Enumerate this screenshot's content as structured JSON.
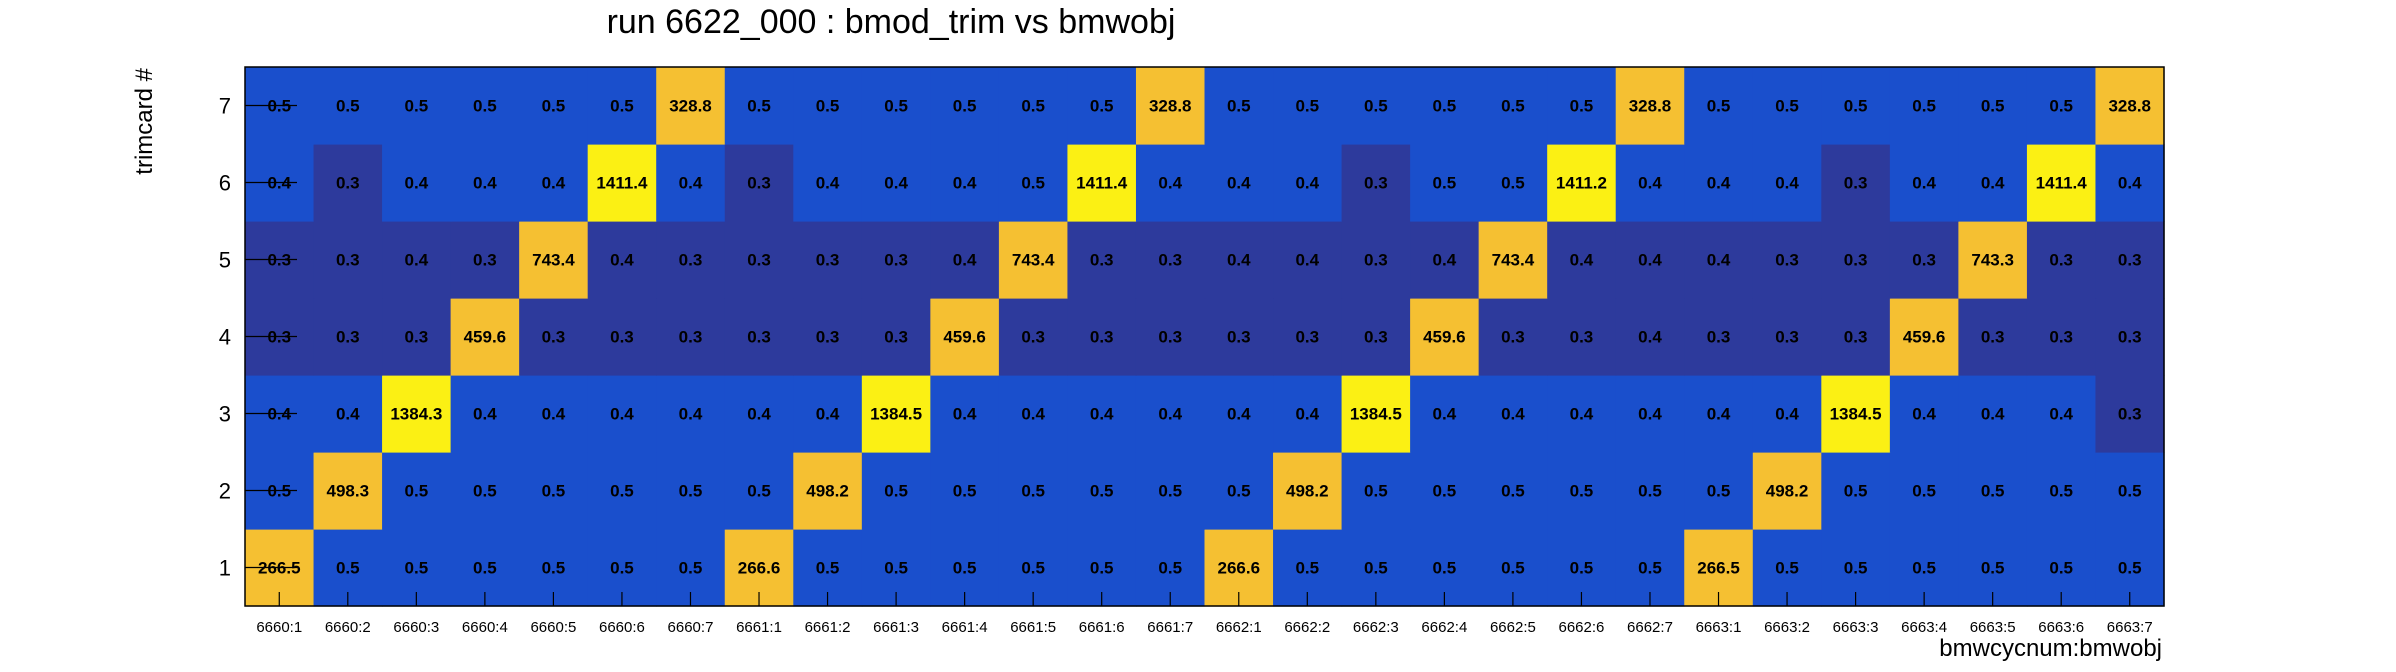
{
  "chart_data": {
    "type": "heatmap",
    "title": "run 6622_000 : bmod_trim vs bmwobj",
    "xlabel": "bmwcycnum:bmwobj",
    "ylabel": "trimcard #",
    "x_categories": [
      "6660:1",
      "6660:2",
      "6660:3",
      "6660:4",
      "6660:5",
      "6660:6",
      "6660:7",
      "6661:1",
      "6661:2",
      "6661:3",
      "6661:4",
      "6661:5",
      "6661:6",
      "6661:7",
      "6662:1",
      "6662:2",
      "6662:3",
      "6662:4",
      "6662:5",
      "6662:6",
      "6662:7",
      "6663:1",
      "6663:2",
      "6663:3",
      "6663:4",
      "6663:5",
      "6663:6",
      "6663:7"
    ],
    "y_categories": [
      "1",
      "2",
      "3",
      "4",
      "5",
      "6",
      "7"
    ],
    "values": [
      [
        "266.5",
        "0.5",
        "0.5",
        "0.5",
        "0.5",
        "0.5",
        "0.5",
        "266.6",
        "0.5",
        "0.5",
        "0.5",
        "0.5",
        "0.5",
        "0.5",
        "266.6",
        "0.5",
        "0.5",
        "0.5",
        "0.5",
        "0.5",
        "0.5",
        "266.5",
        "0.5",
        "0.5",
        "0.5",
        "0.5",
        "0.5",
        "0.5"
      ],
      [
        "0.5",
        "498.3",
        "0.5",
        "0.5",
        "0.5",
        "0.5",
        "0.5",
        "0.5",
        "498.2",
        "0.5",
        "0.5",
        "0.5",
        "0.5",
        "0.5",
        "0.5",
        "498.2",
        "0.5",
        "0.5",
        "0.5",
        "0.5",
        "0.5",
        "0.5",
        "498.2",
        "0.5",
        "0.5",
        "0.5",
        "0.5",
        "0.5"
      ],
      [
        "0.4",
        "0.4",
        "1384.3",
        "0.4",
        "0.4",
        "0.4",
        "0.4",
        "0.4",
        "0.4",
        "1384.5",
        "0.4",
        "0.4",
        "0.4",
        "0.4",
        "0.4",
        "0.4",
        "1384.5",
        "0.4",
        "0.4",
        "0.4",
        "0.4",
        "0.4",
        "0.4",
        "1384.5",
        "0.4",
        "0.4",
        "0.4",
        "0.3"
      ],
      [
        "0.3",
        "0.3",
        "0.3",
        "459.6",
        "0.3",
        "0.3",
        "0.3",
        "0.3",
        "0.3",
        "0.3",
        "459.6",
        "0.3",
        "0.3",
        "0.3",
        "0.3",
        "0.3",
        "0.3",
        "459.6",
        "0.3",
        "0.3",
        "0.4",
        "0.3",
        "0.3",
        "0.3",
        "459.6",
        "0.3",
        "0.3",
        "0.3"
      ],
      [
        "0.3",
        "0.3",
        "0.4",
        "0.3",
        "743.4",
        "0.4",
        "0.3",
        "0.3",
        "0.3",
        "0.3",
        "0.4",
        "743.4",
        "0.3",
        "0.3",
        "0.4",
        "0.4",
        "0.3",
        "0.4",
        "743.4",
        "0.4",
        "0.4",
        "0.4",
        "0.3",
        "0.3",
        "0.3",
        "743.3",
        "0.3",
        "0.3"
      ],
      [
        "0.4",
        "0.3",
        "0.4",
        "0.4",
        "0.4",
        "1411.4",
        "0.4",
        "0.3",
        "0.4",
        "0.4",
        "0.4",
        "0.5",
        "1411.4",
        "0.4",
        "0.4",
        "0.4",
        "0.3",
        "0.5",
        "0.5",
        "1411.2",
        "0.4",
        "0.4",
        "0.4",
        "0.3",
        "0.4",
        "0.4",
        "1411.4",
        "0.4"
      ],
      [
        "0.5",
        "0.5",
        "0.5",
        "0.5",
        "0.5",
        "0.5",
        "328.8",
        "0.5",
        "0.5",
        "0.5",
        "0.5",
        "0.5",
        "0.5",
        "328.8",
        "0.5",
        "0.5",
        "0.5",
        "0.5",
        "0.5",
        "0.5",
        "328.8",
        "0.5",
        "0.5",
        "0.5",
        "0.5",
        "0.5",
        "0.5",
        "328.8"
      ]
    ],
    "palette": {
      "low_dark": "#2d3a9c",
      "low": "#1a4fcc",
      "mid": "#f5c032",
      "high": "#fbf014"
    },
    "grid": false,
    "legend": "none"
  }
}
